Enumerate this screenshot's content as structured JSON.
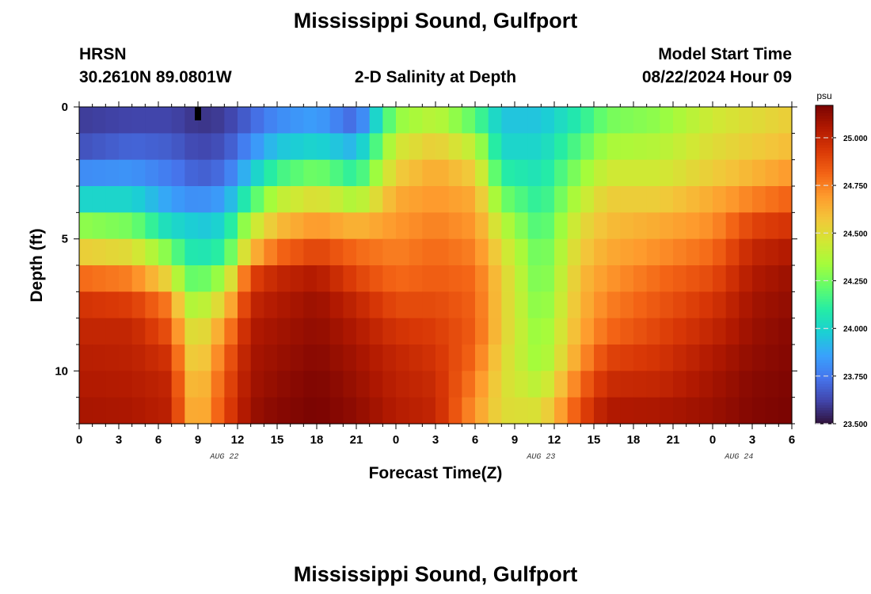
{
  "header": {
    "title": "Mississippi Sound, Gulfport",
    "station_id": "HRSN",
    "coordinates": "30.2610N  89.0801W",
    "subtitle": "2-D Salinity at Depth",
    "model_start_label": "Model Start Time",
    "model_start_value": "08/22/2024 Hour 09"
  },
  "footer": {
    "title": "Mississippi Sound, Gulfport"
  },
  "chart_data": {
    "type": "heatmap",
    "title": "2-D Salinity at Depth",
    "xlabel": "Forecast Time(Z)",
    "ylabel": "Depth (ft)",
    "x_tick_labels": [
      "0",
      "3",
      "6",
      "9",
      "12",
      "15",
      "18",
      "21",
      "0",
      "3",
      "6",
      "9",
      "12",
      "15",
      "18",
      "21",
      "0",
      "3",
      "6"
    ],
    "x_date_labels": [
      {
        "text": "AUG 22",
        "hour_index": 11
      },
      {
        "text": "AUG 23",
        "hour_index": 35
      },
      {
        "text": "AUG 24",
        "hour_index": 50
      }
    ],
    "x_range_hours": [
      0,
      54
    ],
    "y_tick_labels": [
      {
        "value": 0,
        "text": "0"
      },
      {
        "value": 5,
        "text": "5"
      },
      {
        "value": 10,
        "text": "10"
      }
    ],
    "y_range_ft": [
      0,
      12
    ],
    "y_inverted": true,
    "depth_layers_ft": [
      0.5,
      1.5,
      2.5,
      3.5,
      4.5,
      5.5,
      6.5,
      7.5,
      8.5,
      9.5,
      10.5,
      11.5
    ],
    "colorbar": {
      "unit": "psu",
      "range": [
        23.5,
        25.17
      ],
      "tick_labels": [
        "25.000",
        "24.750",
        "24.500",
        "24.250",
        "24.000",
        "23.750",
        "23.500"
      ],
      "tick_values": [
        25.0,
        24.75,
        24.5,
        24.25,
        24.0,
        23.75,
        23.5
      ],
      "colors": [
        "#30123b",
        "#4145ab",
        "#4675ed",
        "#39a2fc",
        "#1bcfd4",
        "#24eca6",
        "#61fc6c",
        "#a4fc3b",
        "#d1e834",
        "#f3c63a",
        "#fe9b2d",
        "#f36315",
        "#d93806",
        "#b11901",
        "#7a0402"
      ]
    },
    "model_start_marker": {
      "hour": 9,
      "depth_ft": 0
    },
    "salinity_profile_keyframes": [
      {
        "hour": 0,
        "psu": [
          23.6,
          23.65,
          23.8,
          24.0,
          24.3,
          24.55,
          24.8,
          24.95,
          25.0,
          25.03,
          25.05,
          25.07
        ]
      },
      {
        "hour": 4,
        "psu": [
          23.62,
          23.7,
          23.82,
          24.0,
          24.25,
          24.5,
          24.75,
          24.92,
          25.0,
          25.02,
          25.04,
          25.06
        ]
      },
      {
        "hour": 7,
        "psu": [
          23.62,
          23.68,
          23.75,
          23.85,
          24.0,
          24.25,
          24.5,
          24.75,
          24.85,
          24.95,
          25.0,
          25.02
        ]
      },
      {
        "hour": 8,
        "psu": [
          23.6,
          23.65,
          23.72,
          23.82,
          24.0,
          24.1,
          24.25,
          24.4,
          24.55,
          24.62,
          24.68,
          24.72
        ]
      },
      {
        "hour": 9,
        "psu": [
          23.58,
          23.62,
          23.68,
          23.8,
          23.95,
          24.05,
          24.2,
          24.35,
          24.45,
          24.5,
          24.55,
          24.58
        ]
      },
      {
        "hour": 11,
        "psu": [
          23.6,
          23.65,
          23.72,
          23.85,
          24.0,
          24.12,
          24.35,
          24.55,
          24.7,
          24.8,
          24.85,
          24.88
        ]
      },
      {
        "hour": 13,
        "psu": [
          23.7,
          23.8,
          23.95,
          24.15,
          24.4,
          24.6,
          24.9,
          25.0,
          25.05,
          25.07,
          25.08,
          25.1
        ]
      },
      {
        "hour": 15,
        "psu": [
          23.8,
          23.95,
          24.15,
          24.4,
          24.6,
          24.8,
          25.0,
          25.05,
          25.08,
          25.1,
          25.12,
          25.14
        ]
      },
      {
        "hour": 18,
        "psu": [
          23.85,
          24.0,
          24.25,
          24.5,
          24.7,
          24.9,
          25.05,
          25.1,
          25.12,
          25.14,
          25.16,
          25.17
        ]
      },
      {
        "hour": 21,
        "psu": [
          23.7,
          23.9,
          24.1,
          24.35,
          24.62,
          24.8,
          24.9,
          25.0,
          25.05,
          25.08,
          25.1,
          25.12
        ]
      },
      {
        "hour": 24,
        "psu": [
          24.3,
          24.45,
          24.55,
          24.65,
          24.7,
          24.75,
          24.8,
          24.88,
          24.95,
          25.0,
          25.02,
          25.04
        ]
      },
      {
        "hour": 27,
        "psu": [
          24.4,
          24.55,
          24.65,
          24.7,
          24.75,
          24.8,
          24.83,
          24.88,
          24.92,
          24.95,
          24.98,
          25.0
        ]
      },
      {
        "hour": 30,
        "psu": [
          24.2,
          24.4,
          24.55,
          24.65,
          24.7,
          24.75,
          24.8,
          24.82,
          24.83,
          24.8,
          24.75,
          24.7
        ]
      },
      {
        "hour": 32,
        "psu": [
          23.95,
          24.0,
          24.1,
          24.25,
          24.4,
          24.5,
          24.55,
          24.55,
          24.55,
          24.52,
          24.5,
          24.5
        ]
      },
      {
        "hour": 35,
        "psu": [
          23.95,
          24.0,
          24.05,
          24.1,
          24.15,
          24.2,
          24.22,
          24.25,
          24.28,
          24.3,
          24.38,
          24.48
        ]
      },
      {
        "hour": 38,
        "psu": [
          24.1,
          24.2,
          24.3,
          24.4,
          24.5,
          24.55,
          24.6,
          24.62,
          24.65,
          24.7,
          24.8,
          24.88
        ]
      },
      {
        "hour": 40,
        "psu": [
          24.25,
          24.35,
          24.45,
          24.55,
          24.6,
          24.65,
          24.7,
          24.75,
          24.8,
          24.9,
          24.98,
          25.05
        ]
      },
      {
        "hour": 44,
        "psu": [
          24.3,
          24.38,
          24.45,
          24.55,
          24.65,
          24.72,
          24.8,
          24.85,
          24.9,
          24.95,
          25.0,
          25.06
        ]
      },
      {
        "hour": 48,
        "psu": [
          24.45,
          24.5,
          24.55,
          24.65,
          24.72,
          24.8,
          24.88,
          24.95,
          25.0,
          25.05,
          25.08,
          25.1
        ]
      },
      {
        "hour": 51,
        "psu": [
          24.5,
          24.55,
          24.62,
          24.75,
          24.9,
          25.0,
          25.05,
          25.08,
          25.1,
          25.12,
          25.14,
          25.15
        ]
      },
      {
        "hour": 54,
        "psu": [
          24.55,
          24.6,
          24.7,
          24.82,
          24.95,
          25.05,
          25.1,
          25.12,
          25.14,
          25.15,
          25.16,
          25.17
        ]
      }
    ],
    "grid": false,
    "legend": "colorbar-right"
  }
}
